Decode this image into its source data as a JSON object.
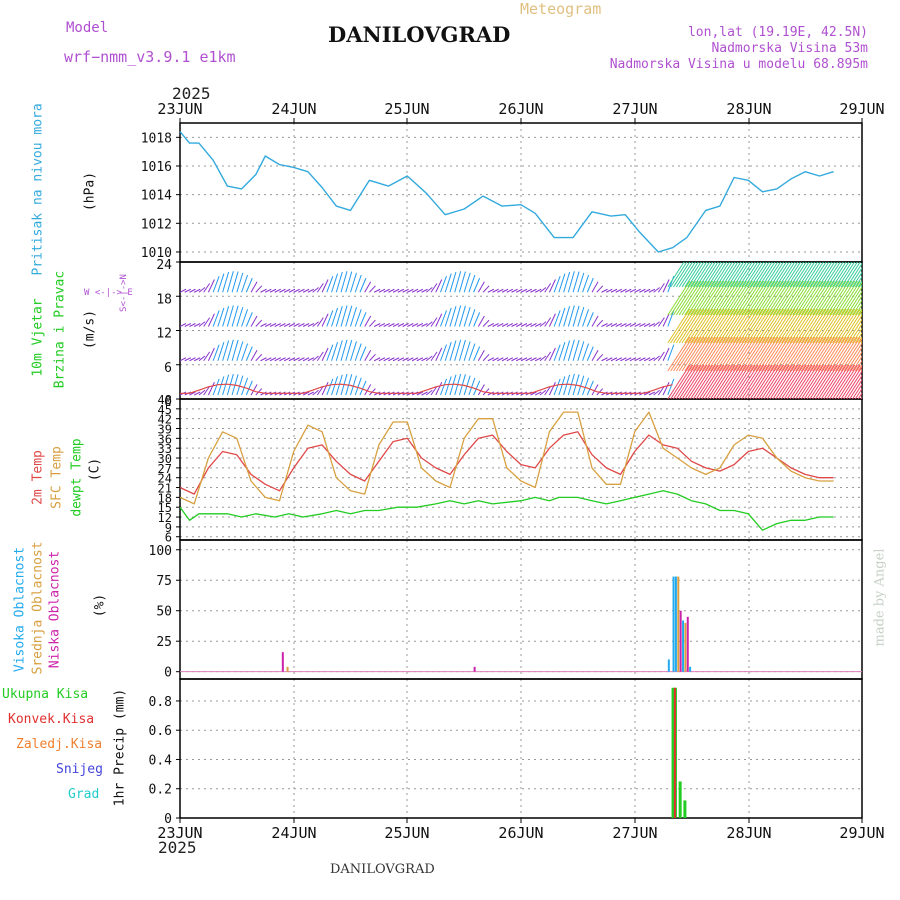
{
  "header": {
    "model_label": "Model",
    "model_name": "wrf−nmm_v3.9.1 e1km",
    "title": "DANILOVGRAD",
    "meteogram": "Meteogram",
    "lonlat": "lon,lat (19.19E, 42.5N)",
    "altitude": "Nadmorska Visina 53m",
    "model_altitude": "Nadmorska Visina u modelu 68.895m",
    "year_top": "2025",
    "year_bottom": "2025",
    "footer_name": "DANILOVGRAD",
    "credit": "made by Angel"
  },
  "days": [
    "23JUN",
    "24JUN",
    "25JUN",
    "26JUN",
    "27JUN",
    "28JUN",
    "29JUN"
  ],
  "colors": {
    "pressure": "#33aadd",
    "temp2m": "#e04848",
    "sfc": "#d8a040",
    "dewpt": "#22cc22",
    "high_cloud": "#22aaee",
    "mid_cloud": "#d8a040",
    "low_cloud": "#cc22aa",
    "total_rain": "#22cc22",
    "conv_rain": "#e03030",
    "frozen_rain": "#f08030",
    "snow": "#4444dd",
    "hail": "#22cccc"
  },
  "panels": {
    "pressure": {
      "label": "Pritisak na nivou mora",
      "unit": "(hPa)",
      "yticks": [
        "1018",
        "1016",
        "1014",
        "1012",
        "1010"
      ]
    },
    "wind": {
      "label1": "10m Vjetar",
      "label2": "Brzina i Pravac",
      "unit": "(m/s)",
      "compass": "W <-|-> E",
      "compass_ns": "S<-|->N",
      "yticks": [
        "24",
        "18",
        "12",
        "6",
        "0"
      ]
    },
    "temp": {
      "label1": "2m Temp",
      "label2": "SFC Temp",
      "label3": "dewpt Temp",
      "unit": "(C)",
      "yticks": [
        "48",
        "45",
        "42",
        "39",
        "36",
        "33",
        "30",
        "27",
        "24",
        "21",
        "18",
        "15",
        "12",
        "9",
        "6"
      ]
    },
    "cloud": {
      "label1": "Visoka Oblacnost",
      "label2": "Srednja Oblacnost",
      "label3": "Niska Oblacnost",
      "unit": "(%)",
      "yticks": [
        "100",
        "75",
        "50",
        "25",
        "0"
      ]
    },
    "precip": {
      "legend": [
        "Ukupna Kisa",
        "Konvek.Kisa",
        "Zaledj.Kisa",
        "Snijeg",
        "Grad"
      ],
      "unit": "1hr Precip (mm)",
      "yticks": [
        "0.8",
        "0.6",
        "0.4",
        "0.2",
        "0"
      ]
    }
  },
  "chart_data": [
    {
      "type": "line",
      "panel": "pressure",
      "x_unit": "hours since 23JUN 00",
      "ylim": [
        1009.3,
        1019
      ],
      "series": [
        {
          "values": [
            [
              0,
              1018.4
            ],
            [
              4,
              1017.6
            ],
            [
              8,
              1017.6
            ],
            [
              14,
              1016.4
            ],
            [
              20,
              1014.6
            ],
            [
              26,
              1014.4
            ],
            [
              32,
              1015.4
            ],
            [
              36,
              1016.7
            ],
            [
              42,
              1016.1
            ],
            [
              48,
              1015.9
            ],
            [
              54,
              1015.6
            ],
            [
              60,
              1014.5
            ],
            [
              66,
              1013.2
            ],
            [
              72,
              1012.9
            ],
            [
              80,
              1015.0
            ],
            [
              88,
              1014.6
            ],
            [
              96,
              1015.3
            ],
            [
              104,
              1014.1
            ],
            [
              112,
              1012.6
            ],
            [
              120,
              1013.0
            ],
            [
              128,
              1013.9
            ],
            [
              136,
              1013.2
            ],
            [
              144,
              1013.3
            ],
            [
              150,
              1012.7
            ],
            [
              158,
              1011.0
            ],
            [
              166,
              1011.0
            ],
            [
              174,
              1012.8
            ],
            [
              182,
              1012.5
            ],
            [
              188,
              1012.6
            ],
            [
              194,
              1011.4
            ],
            [
              202,
              1010.0
            ],
            [
              208,
              1010.3
            ],
            [
              214,
              1011.0
            ],
            [
              222,
              1012.9
            ],
            [
              228,
              1013.2
            ],
            [
              234,
              1015.2
            ],
            [
              240,
              1015.0
            ],
            [
              246,
              1014.2
            ],
            [
              252,
              1014.4
            ],
            [
              258,
              1015.1
            ],
            [
              264,
              1015.6
            ],
            [
              270,
              1015.3
            ],
            [
              276,
              1015.6
            ]
          ]
        }
      ]
    },
    {
      "type": "line",
      "panel": "temperature",
      "x_unit": "hours since 23JUN 00",
      "ylim": [
        5,
        48
      ],
      "series": [
        {
          "name": "2m Temp",
          "values": [
            [
              0,
              21
            ],
            [
              6,
              19
            ],
            [
              12,
              27
            ],
            [
              18,
              32
            ],
            [
              24,
              31
            ],
            [
              30,
              25
            ],
            [
              36,
              22
            ],
            [
              42,
              20
            ],
            [
              48,
              27
            ],
            [
              54,
              33
            ],
            [
              60,
              34
            ],
            [
              66,
              29
            ],
            [
              72,
              25
            ],
            [
              78,
              23
            ],
            [
              84,
              29
            ],
            [
              90,
              35
            ],
            [
              96,
              36
            ],
            [
              102,
              30
            ],
            [
              108,
              27
            ],
            [
              114,
              25
            ],
            [
              120,
              31
            ],
            [
              126,
              36
            ],
            [
              132,
              37
            ],
            [
              138,
              32
            ],
            [
              144,
              28
            ],
            [
              150,
              27
            ],
            [
              156,
              33
            ],
            [
              162,
              37
            ],
            [
              168,
              38
            ],
            [
              174,
              31
            ],
            [
              180,
              27
            ],
            [
              186,
              25
            ],
            [
              192,
              32
            ],
            [
              198,
              37
            ],
            [
              204,
              34
            ],
            [
              210,
              33
            ],
            [
              216,
              29
            ],
            [
              222,
              27
            ],
            [
              228,
              26
            ],
            [
              234,
              28
            ],
            [
              240,
              32
            ],
            [
              246,
              33
            ],
            [
              252,
              30
            ],
            [
              258,
              27
            ],
            [
              264,
              25
            ],
            [
              270,
              24
            ],
            [
              276,
              24
            ]
          ]
        },
        {
          "name": "SFC Temp",
          "values": [
            [
              0,
              18
            ],
            [
              6,
              16
            ],
            [
              12,
              30
            ],
            [
              18,
              38
            ],
            [
              24,
              36
            ],
            [
              30,
              23
            ],
            [
              36,
              18
            ],
            [
              42,
              17
            ],
            [
              48,
              32
            ],
            [
              54,
              40
            ],
            [
              60,
              38
            ],
            [
              66,
              24
            ],
            [
              72,
              20
            ],
            [
              78,
              19
            ],
            [
              84,
              34
            ],
            [
              90,
              41
            ],
            [
              96,
              41
            ],
            [
              102,
              27
            ],
            [
              108,
              23
            ],
            [
              114,
              21
            ],
            [
              120,
              36
            ],
            [
              126,
              42
            ],
            [
              132,
              42
            ],
            [
              138,
              27
            ],
            [
              144,
              23
            ],
            [
              150,
              21
            ],
            [
              156,
              38
            ],
            [
              162,
              44
            ],
            [
              168,
              44
            ],
            [
              174,
              27
            ],
            [
              180,
              22
            ],
            [
              186,
              22
            ],
            [
              192,
              38
            ],
            [
              198,
              44
            ],
            [
              204,
              33
            ],
            [
              210,
              30
            ],
            [
              216,
              27
            ],
            [
              222,
              25
            ],
            [
              228,
              27
            ],
            [
              234,
              34
            ],
            [
              240,
              37
            ],
            [
              246,
              36
            ],
            [
              252,
              30
            ],
            [
              258,
              26
            ],
            [
              264,
              24
            ],
            [
              270,
              23
            ],
            [
              276,
              23
            ]
          ]
        },
        {
          "name": "dewpt Temp",
          "values": [
            [
              0,
              15
            ],
            [
              4,
              11
            ],
            [
              8,
              13
            ],
            [
              14,
              13
            ],
            [
              20,
              13
            ],
            [
              26,
              12
            ],
            [
              32,
              13
            ],
            [
              40,
              12
            ],
            [
              46,
              13
            ],
            [
              52,
              12
            ],
            [
              60,
              13
            ],
            [
              66,
              14
            ],
            [
              72,
              13
            ],
            [
              78,
              14
            ],
            [
              84,
              14
            ],
            [
              92,
              15
            ],
            [
              100,
              15
            ],
            [
              108,
              16
            ],
            [
              114,
              17
            ],
            [
              120,
              16
            ],
            [
              126,
              17
            ],
            [
              132,
              16
            ],
            [
              144,
              17
            ],
            [
              150,
              18
            ],
            [
              156,
              17
            ],
            [
              160,
              18
            ],
            [
              168,
              18
            ],
            [
              174,
              17
            ],
            [
              180,
              16
            ],
            [
              186,
              17
            ],
            [
              192,
              18
            ],
            [
              198,
              19
            ],
            [
              204,
              20
            ],
            [
              210,
              19
            ],
            [
              216,
              17
            ],
            [
              222,
              16
            ],
            [
              228,
              14
            ],
            [
              234,
              14
            ],
            [
              240,
              13
            ],
            [
              246,
              8
            ],
            [
              252,
              10
            ],
            [
              258,
              11
            ],
            [
              264,
              11
            ],
            [
              270,
              12
            ],
            [
              276,
              12
            ]
          ]
        }
      ]
    },
    {
      "type": "bar",
      "panel": "cloud",
      "x_unit": "hours since 23JUN 00",
      "ylim": [
        0,
        100
      ],
      "series": [
        {
          "name": "Visoka Oblacnost",
          "values": [
            [
              206,
              10
            ],
            [
              208,
              78
            ],
            [
              209,
              78
            ],
            [
              212,
              42
            ],
            [
              215,
              4
            ]
          ]
        },
        {
          "name": "Srednja Oblacnost",
          "values": [
            [
              45,
              4
            ],
            [
              210,
              78
            ],
            [
              213,
              40
            ]
          ]
        },
        {
          "name": "Niska Oblacnost",
          "values": [
            [
              43,
              16
            ],
            [
              124,
              4
            ],
            [
              211,
              50
            ],
            [
              214,
              45
            ]
          ]
        }
      ]
    },
    {
      "type": "bar",
      "panel": "precipitation",
      "x_unit": "hours since 23JUN 00",
      "ylim": [
        0,
        0.95
      ],
      "series": [
        {
          "name": "Ukupna Kisa",
          "values": [
            [
              208,
              0.89
            ],
            [
              209,
              0.89
            ],
            [
              211,
              0.25
            ],
            [
              213,
              0.12
            ]
          ]
        },
        {
          "name": "Konvek.Kisa",
          "values": [
            [
              209,
              0.89
            ]
          ]
        }
      ]
    }
  ]
}
